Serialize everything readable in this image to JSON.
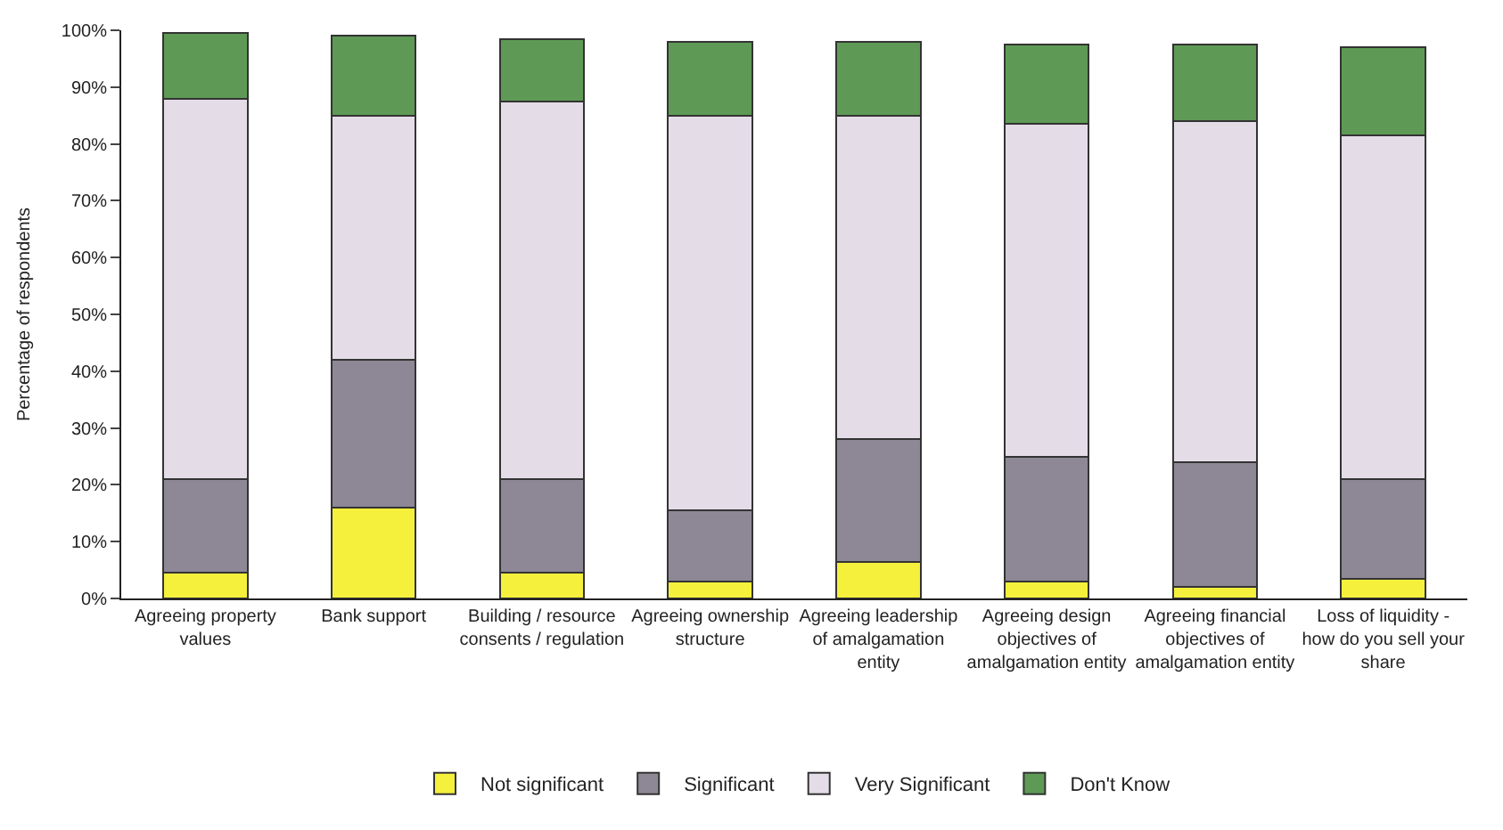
{
  "chart_data": {
    "type": "bar",
    "stacked": true,
    "ylabel": "Percentage of respondents",
    "categories": [
      "Agreeing property values",
      "Bank support",
      "Building / resource consents / regulation",
      "Agreeing ownership structure",
      "Agreeing leadership of amalgamation entity",
      "Agreeing design objectives of amalgamation entity",
      "Agreeing financial objectives of amalgamation entity",
      "Loss of liquidity - how do you sell your share"
    ],
    "series": [
      {
        "name": "Not significant",
        "color": "#f4f03c",
        "values": [
          4.5,
          16,
          4.5,
          3,
          6.5,
          3,
          2,
          3.5
        ]
      },
      {
        "name": "Significant",
        "color": "#8e8896",
        "values": [
          16.5,
          26,
          16.5,
          12.5,
          21.5,
          22,
          22,
          17.5
        ]
      },
      {
        "name": "Very Significant",
        "color": "#e4dde8",
        "values": [
          67,
          43,
          66.5,
          69.5,
          57,
          58.5,
          60,
          60.5
        ]
      },
      {
        "name": "Don't Know",
        "color": "#5e9a55",
        "values": [
          11.5,
          14,
          11,
          13,
          13,
          14,
          13.5,
          15.5
        ]
      }
    ],
    "ylim": [
      0,
      100
    ],
    "yticks": [
      {
        "value": 0,
        "label": "0%"
      },
      {
        "value": 10,
        "label": "10%"
      },
      {
        "value": 20,
        "label": "20%"
      },
      {
        "value": 30,
        "label": "30%"
      },
      {
        "value": 40,
        "label": "40%"
      },
      {
        "value": 50,
        "label": "50%"
      },
      {
        "value": 60,
        "label": "60%"
      },
      {
        "value": 70,
        "label": "70%"
      },
      {
        "value": 80,
        "label": "80%"
      },
      {
        "value": 90,
        "label": "90%"
      },
      {
        "value": 100,
        "label": "100%"
      }
    ],
    "grid": false,
    "legend": "bottom"
  }
}
